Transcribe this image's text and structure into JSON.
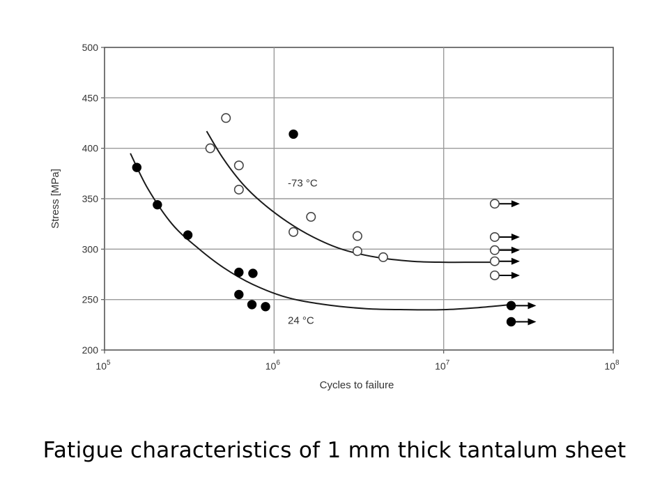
{
  "caption": "Fatigue characteristics of 1 mm thick tantalum sheet",
  "chart_data": {
    "type": "scatter",
    "xscale": "log",
    "xlim": [
      100000,
      100000000
    ],
    "ylim": [
      200,
      500
    ],
    "xlabel": "Cycles to failure",
    "ylabel": "Stress [MPa]",
    "x_ticks": [
      {
        "base": "10",
        "exp": "5"
      },
      {
        "base": "10",
        "exp": "6"
      },
      {
        "base": "10",
        "exp": "7"
      },
      {
        "base": "10",
        "exp": "8"
      }
    ],
    "y_ticks": [
      "200",
      "250",
      "300",
      "350",
      "400",
      "450",
      "500"
    ],
    "y_tick_values": [
      200,
      250,
      300,
      350,
      400,
      450,
      500
    ],
    "grid": true,
    "colors": {
      "grid": "#9a9a9a",
      "marker": "#000000",
      "axis": "#555555"
    },
    "series": [
      {
        "label": "-73 °C",
        "marker": "open",
        "points": [
          [
            420000,
            400
          ],
          [
            520000,
            430
          ],
          [
            620000,
            383
          ],
          [
            620000,
            359
          ],
          [
            1300000,
            317
          ],
          [
            1650000,
            332
          ],
          [
            3100000,
            313
          ],
          [
            3100000,
            298
          ],
          [
            4400000,
            292
          ]
        ],
        "runouts": [
          [
            20000000,
            345
          ],
          [
            20000000,
            312
          ],
          [
            20000000,
            299
          ],
          [
            20000000,
            288
          ],
          [
            20000000,
            274
          ]
        ],
        "trend": [
          [
            400000,
            417
          ],
          [
            500000,
            390
          ],
          [
            650000,
            365
          ],
          [
            850000,
            346
          ],
          [
            1200000,
            327
          ],
          [
            1700000,
            312
          ],
          [
            2500000,
            300
          ],
          [
            4000000,
            292
          ],
          [
            6500000,
            288
          ],
          [
            10000000,
            287
          ],
          [
            15000000,
            287
          ],
          [
            20000000,
            287
          ]
        ]
      },
      {
        "label": "24 °C",
        "marker": "filled",
        "points": [
          [
            155000,
            381
          ],
          [
            205000,
            344
          ],
          [
            310000,
            314
          ],
          [
            620000,
            277
          ],
          [
            750000,
            276
          ],
          [
            620000,
            255
          ],
          [
            740000,
            245
          ],
          [
            890000,
            243
          ],
          [
            1300000,
            414
          ]
        ],
        "runouts": [
          [
            25000000,
            244
          ],
          [
            25000000,
            228
          ]
        ],
        "trend": [
          [
            142000,
            395
          ],
          [
            180000,
            360
          ],
          [
            250000,
            325
          ],
          [
            350000,
            302
          ],
          [
            500000,
            282
          ],
          [
            750000,
            265
          ],
          [
            1200000,
            252
          ],
          [
            2000000,
            245
          ],
          [
            3500000,
            241
          ],
          [
            6000000,
            240
          ],
          [
            10000000,
            240
          ],
          [
            16000000,
            242
          ],
          [
            25000000,
            245
          ]
        ]
      }
    ]
  }
}
